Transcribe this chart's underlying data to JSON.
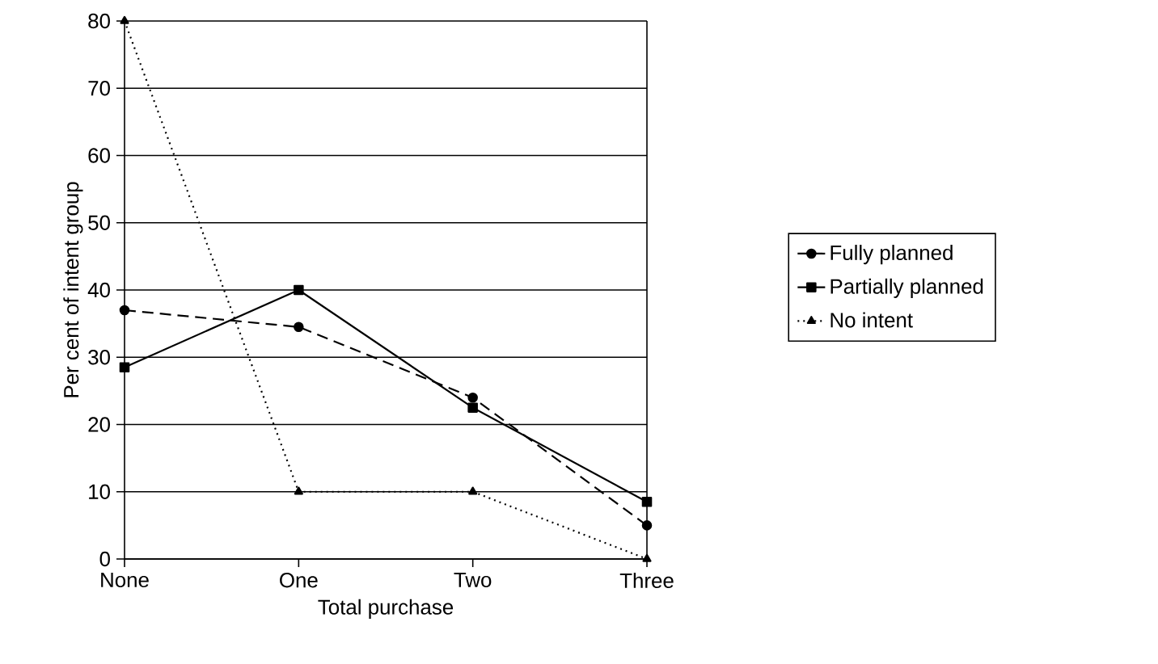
{
  "chart_data": {
    "type": "line",
    "xlabel": "Total purchase",
    "ylabel": "Per cent of intent group",
    "categories": [
      "None",
      "One",
      "Two",
      "Three"
    ],
    "series": [
      {
        "name": "Fully planned",
        "color": "#000000",
        "line_style": "dashed",
        "marker": "circle",
        "values": [
          37,
          34.5,
          24,
          5
        ]
      },
      {
        "name": "Partially planned",
        "color": "#000000",
        "line_style": "solid",
        "marker": "square",
        "values": [
          28.5,
          40,
          22.5,
          8.5
        ]
      },
      {
        "name": "No intent",
        "color": "#000000",
        "line_style": "dotted",
        "marker": "triangle",
        "values": [
          80,
          10,
          10,
          0
        ]
      }
    ],
    "ylim": [
      0,
      80
    ],
    "yticks": [
      0,
      10,
      20,
      30,
      40,
      50,
      60,
      70,
      80
    ],
    "grid": "y",
    "legend": "right"
  }
}
